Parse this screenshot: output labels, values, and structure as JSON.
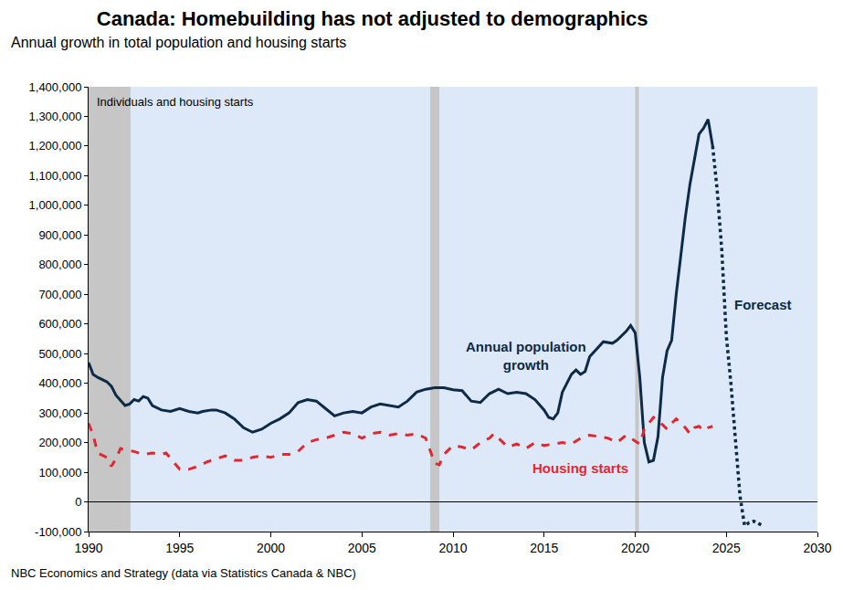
{
  "chart_data": {
    "type": "line",
    "title": "Canada: Homebuilding has not adjusted to demographics",
    "subtitle": "Annual growth in total population and housing starts",
    "annotations": [
      "Individuals and housing starts"
    ],
    "note": "NBC Economics and Strategy (data via Statistics Canada & NBC)",
    "xlim": [
      1990,
      2030
    ],
    "xticks": [
      1990,
      1995,
      2000,
      2005,
      2010,
      2015,
      2020,
      2025,
      2030
    ],
    "ylim": [
      -100000,
      1400000
    ],
    "yticks": [
      {
        "value": -100000,
        "label": "-100,000"
      },
      0,
      {
        "value": 100000,
        "label": "100,000"
      },
      {
        "value": 200000,
        "label": "200,000"
      },
      {
        "value": 300000,
        "label": "300,000"
      },
      {
        "value": 400000,
        "label": "400,000"
      },
      {
        "value": 500000,
        "label": "500,000"
      },
      {
        "value": 600000,
        "label": "600,000"
      },
      {
        "value": 700000,
        "label": "700,000"
      },
      {
        "value": 800000,
        "label": "800,000"
      },
      {
        "value": 900000,
        "label": "900,000"
      },
      {
        "value": 1000000,
        "label": "1,000,000"
      },
      {
        "value": 1100000,
        "label": "1,100,000"
      },
      {
        "value": 1200000,
        "label": "1,200,000"
      },
      {
        "value": 1300000,
        "label": "1,300,000"
      },
      {
        "value": 1400000,
        "label": "1,400,000"
      }
    ],
    "grid": false,
    "shaded_periods": [
      [
        1990.0,
        1992.3
      ],
      [
        2008.75,
        2009.25
      ],
      [
        2020.0,
        2020.2
      ]
    ],
    "series": [
      {
        "name": "Annual population growth",
        "color": "#0d2a47",
        "line_style": "solid",
        "x": [
          1990.0,
          1990.25,
          1990.5,
          1991.0,
          1991.25,
          1991.5,
          1992.0,
          1992.25,
          1992.5,
          1992.75,
          1993.0,
          1993.25,
          1993.5,
          1994.0,
          1994.5,
          1995.0,
          1995.5,
          1996.0,
          1996.25,
          1996.75,
          1997.0,
          1997.5,
          1998.0,
          1998.5,
          1999.0,
          1999.5,
          2000.0,
          2000.5,
          2001.0,
          2001.5,
          2002.0,
          2002.5,
          2003.0,
          2003.5,
          2004.0,
          2004.5,
          2005.0,
          2005.5,
          2006.0,
          2006.5,
          2007.0,
          2007.5,
          2008.0,
          2008.5,
          2009.0,
          2009.5,
          2010.0,
          2010.5,
          2011.0,
          2011.5,
          2012.0,
          2012.5,
          2013.0,
          2013.5,
          2014.0,
          2014.5,
          2015.0,
          2015.25,
          2015.5,
          2015.75,
          2016.0,
          2016.5,
          2016.75,
          2017.0,
          2017.25,
          2017.5,
          2018.0,
          2018.25,
          2018.75,
          2019.0,
          2019.5,
          2019.75,
          2020.0,
          2020.25,
          2020.5,
          2020.75,
          2021.0,
          2021.25,
          2021.5,
          2021.75,
          2022.0,
          2022.25,
          2022.5,
          2022.75,
          2023.0,
          2023.5,
          2023.75,
          2024.0,
          2024.25
        ],
        "values": [
          470000,
          430000,
          420000,
          405000,
          390000,
          360000,
          325000,
          330000,
          345000,
          340000,
          355000,
          350000,
          325000,
          310000,
          305000,
          315000,
          305000,
          300000,
          305000,
          310000,
          310000,
          300000,
          280000,
          250000,
          235000,
          245000,
          265000,
          280000,
          300000,
          335000,
          345000,
          340000,
          315000,
          290000,
          300000,
          305000,
          300000,
          320000,
          330000,
          325000,
          320000,
          340000,
          370000,
          380000,
          385000,
          385000,
          378000,
          375000,
          340000,
          335000,
          365000,
          380000,
          365000,
          370000,
          365000,
          345000,
          310000,
          285000,
          280000,
          300000,
          370000,
          430000,
          445000,
          430000,
          440000,
          490000,
          525000,
          540000,
          535000,
          545000,
          575000,
          595000,
          570000,
          420000,
          200000,
          135000,
          140000,
          220000,
          420000,
          510000,
          545000,
          700000,
          830000,
          960000,
          1070000,
          1240000,
          1260000,
          1290000,
          1200000
        ]
      },
      {
        "name": "Housing starts",
        "color": "#e02833",
        "line_style": "dashed",
        "x": [
          1990.0,
          1990.25,
          1990.5,
          1991.0,
          1991.25,
          1991.5,
          1991.75,
          1992.0,
          1992.5,
          1993.0,
          1993.5,
          1994.0,
          1994.25,
          1994.75,
          1995.0,
          1995.5,
          1996.0,
          1996.5,
          1997.0,
          1997.5,
          1998.0,
          1998.5,
          1999.0,
          1999.5,
          2000.0,
          2000.5,
          2001.0,
          2001.5,
          2002.0,
          2002.5,
          2003.0,
          2003.5,
          2004.0,
          2004.5,
          2005.0,
          2005.5,
          2006.0,
          2006.5,
          2007.0,
          2007.5,
          2008.0,
          2008.5,
          2008.75,
          2009.0,
          2009.25,
          2009.5,
          2010.0,
          2010.5,
          2011.0,
          2011.5,
          2012.0,
          2012.25,
          2012.75,
          2013.0,
          2013.5,
          2014.0,
          2014.5,
          2015.0,
          2015.5,
          2016.0,
          2016.5,
          2017.0,
          2017.5,
          2018.0,
          2018.5,
          2019.0,
          2019.5,
          2020.0,
          2020.25,
          2020.5,
          2020.75,
          2021.0,
          2021.25,
          2021.5,
          2021.75,
          2022.0,
          2022.25,
          2022.5,
          2022.75,
          2023.0,
          2023.25,
          2023.5,
          2023.75,
          2024.0,
          2024.25
        ],
        "values": [
          265000,
          225000,
          165000,
          150000,
          120000,
          145000,
          180000,
          175000,
          170000,
          160000,
          165000,
          160000,
          165000,
          130000,
          110000,
          110000,
          120000,
          135000,
          145000,
          155000,
          140000,
          140000,
          150000,
          155000,
          150000,
          160000,
          160000,
          170000,
          200000,
          210000,
          215000,
          225000,
          235000,
          230000,
          215000,
          230000,
          235000,
          225000,
          230000,
          225000,
          230000,
          215000,
          175000,
          130000,
          125000,
          160000,
          190000,
          185000,
          175000,
          200000,
          215000,
          230000,
          200000,
          185000,
          195000,
          180000,
          200000,
          190000,
          195000,
          200000,
          195000,
          215000,
          225000,
          220000,
          215000,
          200000,
          225000,
          205000,
          195000,
          245000,
          265000,
          285000,
          275000,
          260000,
          245000,
          265000,
          280000,
          265000,
          250000,
          230000,
          250000,
          255000,
          240000,
          250000,
          255000
        ]
      },
      {
        "name": "Forecast",
        "color": "#0d2a47",
        "line_style": "dotted",
        "x": [
          2024.25,
          2024.5,
          2024.75,
          2025.0,
          2025.25,
          2025.5,
          2025.75,
          2026.0,
          2026.25,
          2026.5,
          2026.75,
          2027.0
        ],
        "values": [
          1200000,
          1050000,
          850000,
          560000,
          400000,
          200000,
          20000,
          -80000,
          -70000,
          -65000,
          -72000,
          -80000
        ]
      }
    ]
  }
}
